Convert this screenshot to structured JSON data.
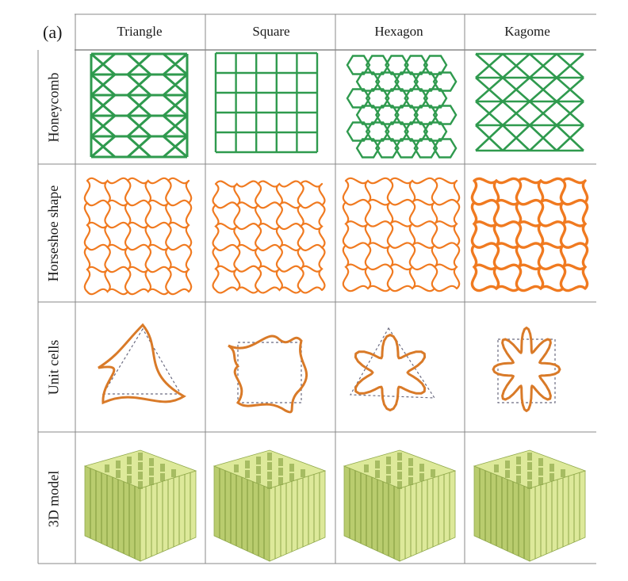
{
  "panel_label": "(a)",
  "columns": [
    "Triangle",
    "Square",
    "Hexagon",
    "Kagome"
  ],
  "rows": [
    "Honeycomb",
    "Horseshoe shape",
    "Unit cells",
    "3D model"
  ],
  "colors": {
    "honeycomb": "#2f9a4e",
    "horseshoe": "#f07a20",
    "unit_cell": "#d97a28",
    "model_top": "#dde99a",
    "model_side": "#b9cc6e",
    "model_dark": "#8fa84a",
    "grid": "#888888"
  }
}
